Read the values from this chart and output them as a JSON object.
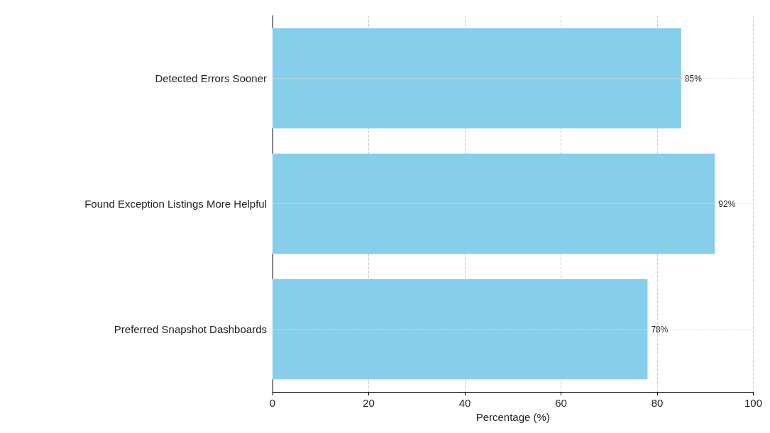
{
  "chart_data": {
    "type": "bar",
    "orientation": "horizontal",
    "xlabel": "Percentage (%)",
    "categories": [
      "Detected Errors Sooner",
      "Found Exception Listings More Helpful",
      "Preferred Snapshot Dashboards"
    ],
    "values": [
      85,
      92,
      78
    ],
    "value_labels": [
      "85%",
      "92%",
      "78%"
    ],
    "color": "#87ceeb",
    "xlim": [
      0,
      100
    ],
    "xticks": [
      0,
      20,
      40,
      60,
      80,
      100
    ],
    "grid": true
  }
}
